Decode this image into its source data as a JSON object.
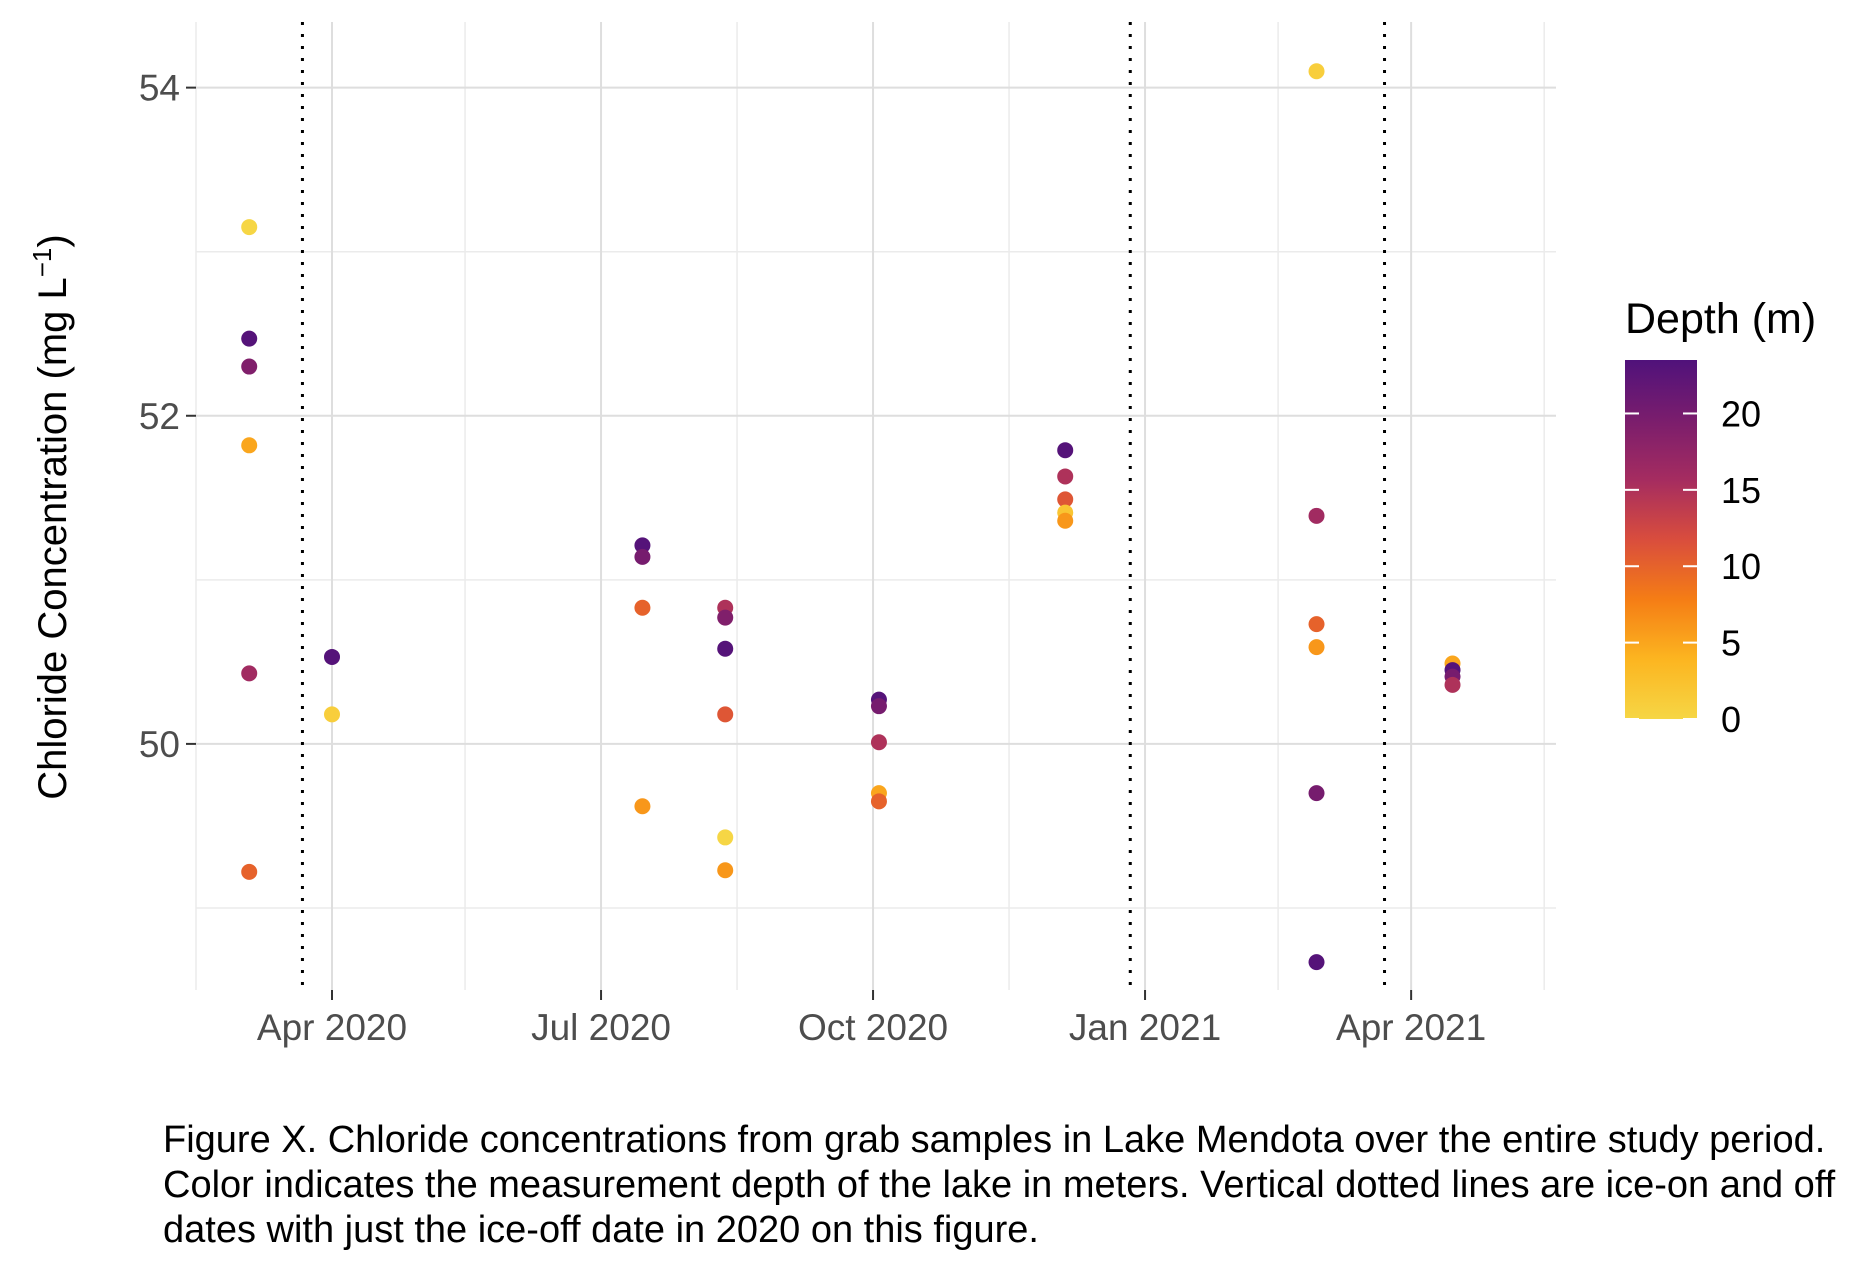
{
  "chart_data": {
    "type": "scatter",
    "title": "",
    "xlabel": "",
    "ylabel_main": "Chloride Concentration (mg L",
    "ylabel_sup": "−1",
    "ylabel_close": ")",
    "xlim": [
      "2020-02-15",
      "2021-05-20"
    ],
    "ylim": [
      48.5,
      54.4
    ],
    "x_ticks": [
      {
        "date": "2020-04-01",
        "label": "Apr 2020"
      },
      {
        "date": "2020-07-01",
        "label": "Jul 2020"
      },
      {
        "date": "2020-10-01",
        "label": "Oct 2020"
      },
      {
        "date": "2021-01-01",
        "label": "Jan 2021"
      },
      {
        "date": "2021-04-01",
        "label": "Apr 2021"
      }
    ],
    "x_minor_grid": [
      "2020-02-15",
      "2020-05-16",
      "2020-08-16",
      "2020-11-16",
      "2021-02-15",
      "2021-05-16"
    ],
    "y_ticks": [
      {
        "value": 50,
        "label": "50"
      },
      {
        "value": 52,
        "label": "52"
      },
      {
        "value": 54,
        "label": "54"
      }
    ],
    "y_minor_grid": [
      49,
      51,
      53
    ],
    "grid": true,
    "vlines": [
      "2020-03-22",
      "2020-12-27",
      "2021-03-23"
    ],
    "vline_style": "dotted",
    "color_scale": {
      "title": "Depth (m)",
      "min": 0,
      "max": 23.5,
      "ticks": [
        0,
        5,
        10,
        15,
        20
      ],
      "stops": [
        "#f6d645",
        "#fcb520",
        "#f57d15",
        "#d94d3d",
        "#a52c60",
        "#7a1d6d",
        "#50127b"
      ],
      "legend_position": "right"
    },
    "points": [
      {
        "x": "2020-03-04",
        "y": 53.15,
        "depth": 0
      },
      {
        "x": "2020-03-04",
        "y": 52.47,
        "depth": 23
      },
      {
        "x": "2020-03-04",
        "y": 52.3,
        "depth": 19
      },
      {
        "x": "2020-03-04",
        "y": 51.82,
        "depth": 5
      },
      {
        "x": "2020-03-04",
        "y": 50.43,
        "depth": 16
      },
      {
        "x": "2020-03-04",
        "y": 49.22,
        "depth": 10
      },
      {
        "x": "2020-04-01",
        "y": 50.53,
        "depth": 23
      },
      {
        "x": "2020-04-01",
        "y": 50.18,
        "depth": 1
      },
      {
        "x": "2020-07-15",
        "y": 51.21,
        "depth": 23
      },
      {
        "x": "2020-07-15",
        "y": 51.14,
        "depth": 20
      },
      {
        "x": "2020-07-15",
        "y": 50.83,
        "depth": 10
      },
      {
        "x": "2020-07-15",
        "y": 49.62,
        "depth": 6
      },
      {
        "x": "2020-08-12",
        "y": 50.83,
        "depth": 15
      },
      {
        "x": "2020-08-12",
        "y": 50.77,
        "depth": 19
      },
      {
        "x": "2020-08-12",
        "y": 50.58,
        "depth": 23
      },
      {
        "x": "2020-08-12",
        "y": 50.18,
        "depth": 11
      },
      {
        "x": "2020-08-12",
        "y": 49.43,
        "depth": 0
      },
      {
        "x": "2020-08-12",
        "y": 49.23,
        "depth": 6
      },
      {
        "x": "2020-10-03",
        "y": 50.27,
        "depth": 23
      },
      {
        "x": "2020-10-03",
        "y": 50.23,
        "depth": 20
      },
      {
        "x": "2020-10-03",
        "y": 50.01,
        "depth": 15
      },
      {
        "x": "2020-10-03",
        "y": 49.7,
        "depth": 5
      },
      {
        "x": "2020-10-03",
        "y": 49.65,
        "depth": 10
      },
      {
        "x": "2020-12-05",
        "y": 51.79,
        "depth": 23
      },
      {
        "x": "2020-12-05",
        "y": 51.63,
        "depth": 15
      },
      {
        "x": "2020-12-05",
        "y": 51.49,
        "depth": 11
      },
      {
        "x": "2020-12-05",
        "y": 51.41,
        "depth": 2
      },
      {
        "x": "2020-12-05",
        "y": 51.36,
        "depth": 6
      },
      {
        "x": "2021-02-28",
        "y": 54.1,
        "depth": 1
      },
      {
        "x": "2021-02-28",
        "y": 51.39,
        "depth": 16
      },
      {
        "x": "2021-02-28",
        "y": 50.73,
        "depth": 10
      },
      {
        "x": "2021-02-28",
        "y": 50.59,
        "depth": 6
      },
      {
        "x": "2021-02-28",
        "y": 49.7,
        "depth": 20
      },
      {
        "x": "2021-02-28",
        "y": 48.67,
        "depth": 23
      },
      {
        "x": "2021-04-15",
        "y": 50.49,
        "depth": 5
      },
      {
        "x": "2021-04-15",
        "y": 50.45,
        "depth": 23
      },
      {
        "x": "2021-04-15",
        "y": 50.41,
        "depth": 20
      },
      {
        "x": "2021-04-15",
        "y": 50.36,
        "depth": 15
      }
    ]
  },
  "caption": "Figure X. Chloride concentrations from grab samples in Lake Mendota over the entire study period. Color indicates the measurement depth of the lake in meters. Vertical dotted lines are ice-on and off dates with just the ice-off date in 2020 on this figure."
}
